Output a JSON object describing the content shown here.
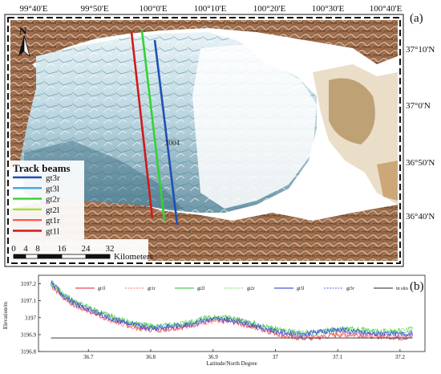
{
  "panel_a": {
    "label": "(a)",
    "north_label": "N",
    "coords_top": [
      "99°40'E",
      "99°50'E",
      "100°0'E",
      "100°10'E",
      "100°20'E",
      "100°30'E",
      "100°40'E"
    ],
    "coords_right": [
      "37°10'N",
      "37°0'N",
      "36°50'N",
      "36°40'N"
    ],
    "map_label": "3004",
    "legend": {
      "title": "Track beams",
      "items": [
        {
          "name": "gt3r",
          "color": "#1f4fb4"
        },
        {
          "name": "gt3l",
          "color": "#3aa6e0"
        },
        {
          "name": "gt2r",
          "color": "#33d233"
        },
        {
          "name": "gt2l",
          "color": "#9fe22e"
        },
        {
          "name": "gt1r",
          "color": "#ff5a4a"
        },
        {
          "name": "gt1l",
          "color": "#d21818"
        }
      ]
    },
    "scale_bar": {
      "ticks": [
        "0",
        "4",
        "8",
        "16",
        "24",
        "32"
      ],
      "unit": "Kilometers"
    }
  },
  "chart_data": {
    "type": "line",
    "panel_label": "(b)",
    "xlabel": "Latitude/North Degree",
    "ylabel": "Elevation/m",
    "xlim": [
      36.62,
      37.24
    ],
    "ylim": [
      3196.8,
      3197.25
    ],
    "xticks": [
      "36.7",
      "36.8",
      "36.9",
      "37",
      "37.1",
      "37.2"
    ],
    "yticks": [
      "3197.2",
      "3197.1",
      "3197",
      "3196.9",
      "3196.8"
    ],
    "legend_position": "top",
    "x": [
      36.64,
      36.66,
      36.68,
      36.7,
      36.72,
      36.74,
      36.76,
      36.78,
      36.8,
      36.82,
      36.84,
      36.86,
      36.88,
      36.9,
      36.92,
      36.94,
      36.96,
      36.98,
      37.0,
      37.02,
      37.04,
      37.06,
      37.08,
      37.1,
      37.12,
      37.14,
      37.16,
      37.18,
      37.2,
      37.22
    ],
    "series": [
      {
        "name": "gt1l",
        "color": "#e0202e",
        "values": [
          3197.19,
          3197.12,
          3197.07,
          3197.04,
          3197.01,
          3196.98,
          3196.96,
          3196.94,
          3196.93,
          3196.93,
          3196.94,
          3196.95,
          3196.97,
          3196.98,
          3196.98,
          3196.97,
          3196.95,
          3196.93,
          3196.91,
          3196.89,
          3196.88,
          3196.88,
          3196.89,
          3196.9,
          3196.9,
          3196.9,
          3196.89,
          3196.89,
          3196.88,
          3196.89
        ]
      },
      {
        "name": "gt1r",
        "color": "#ff6b6b",
        "values": [
          3197.19,
          3197.12,
          3197.07,
          3197.04,
          3197.01,
          3196.98,
          3196.96,
          3196.94,
          3196.93,
          3196.93,
          3196.94,
          3196.95,
          3196.97,
          3196.98,
          3196.98,
          3196.97,
          3196.95,
          3196.93,
          3196.91,
          3196.89,
          3196.88,
          3196.88,
          3196.89,
          3196.9,
          3196.9,
          3196.9,
          3196.89,
          3196.89,
          3196.88,
          3196.89
        ]
      },
      {
        "name": "gt2l",
        "color": "#22c02a",
        "values": [
          3197.2,
          3197.14,
          3197.09,
          3197.06,
          3197.03,
          3197.0,
          3196.98,
          3196.96,
          3196.95,
          3196.95,
          3196.96,
          3196.97,
          3196.99,
          3197.0,
          3197.0,
          3196.99,
          3196.97,
          3196.95,
          3196.93,
          3196.92,
          3196.91,
          3196.91,
          3196.92,
          3196.93,
          3196.93,
          3196.93,
          3196.92,
          3196.92,
          3196.92,
          3196.93
        ]
      },
      {
        "name": "gt2r",
        "color": "#66e05a",
        "values": [
          3197.2,
          3197.14,
          3197.09,
          3197.06,
          3197.03,
          3197.0,
          3196.98,
          3196.96,
          3196.95,
          3196.95,
          3196.96,
          3196.97,
          3196.99,
          3197.0,
          3197.0,
          3196.99,
          3196.97,
          3196.95,
          3196.93,
          3196.92,
          3196.91,
          3196.91,
          3196.92,
          3196.93,
          3196.93,
          3196.93,
          3196.92,
          3196.92,
          3196.92,
          3196.93
        ]
      },
      {
        "name": "gt3l",
        "color": "#1a2fd0",
        "values": [
          3197.21,
          3197.13,
          3197.08,
          3197.05,
          3197.02,
          3196.99,
          3196.97,
          3196.95,
          3196.94,
          3196.94,
          3196.95,
          3196.96,
          3196.98,
          3196.99,
          3196.99,
          3196.98,
          3196.96,
          3196.94,
          3196.92,
          3196.91,
          3196.9,
          3196.91,
          3196.92,
          3196.93,
          3196.92,
          3196.91,
          3196.9,
          3196.91,
          3196.9,
          3196.91
        ]
      },
      {
        "name": "gt3r",
        "color": "#4a5fe8",
        "values": [
          3197.21,
          3197.13,
          3197.08,
          3197.05,
          3197.02,
          3196.99,
          3196.97,
          3196.95,
          3196.94,
          3196.94,
          3196.95,
          3196.96,
          3196.98,
          3196.99,
          3196.99,
          3196.98,
          3196.96,
          3196.94,
          3196.92,
          3196.91,
          3196.9,
          3196.91,
          3196.92,
          3196.93,
          3196.92,
          3196.91,
          3196.9,
          3196.91,
          3196.9,
          3196.91
        ]
      },
      {
        "name": "in situ",
        "color": "#222222",
        "values": [
          3196.88,
          3196.88,
          3196.88,
          3196.88,
          3196.88,
          3196.88,
          3196.88,
          3196.88,
          3196.88,
          3196.88,
          3196.88,
          3196.88,
          3196.88,
          3196.88,
          3196.88,
          3196.88,
          3196.88,
          3196.88,
          3196.88,
          3196.88,
          3196.88,
          3196.88,
          3196.88,
          3196.88,
          3196.88,
          3196.88,
          3196.88,
          3196.88,
          3196.88,
          3196.88
        ]
      }
    ]
  }
}
